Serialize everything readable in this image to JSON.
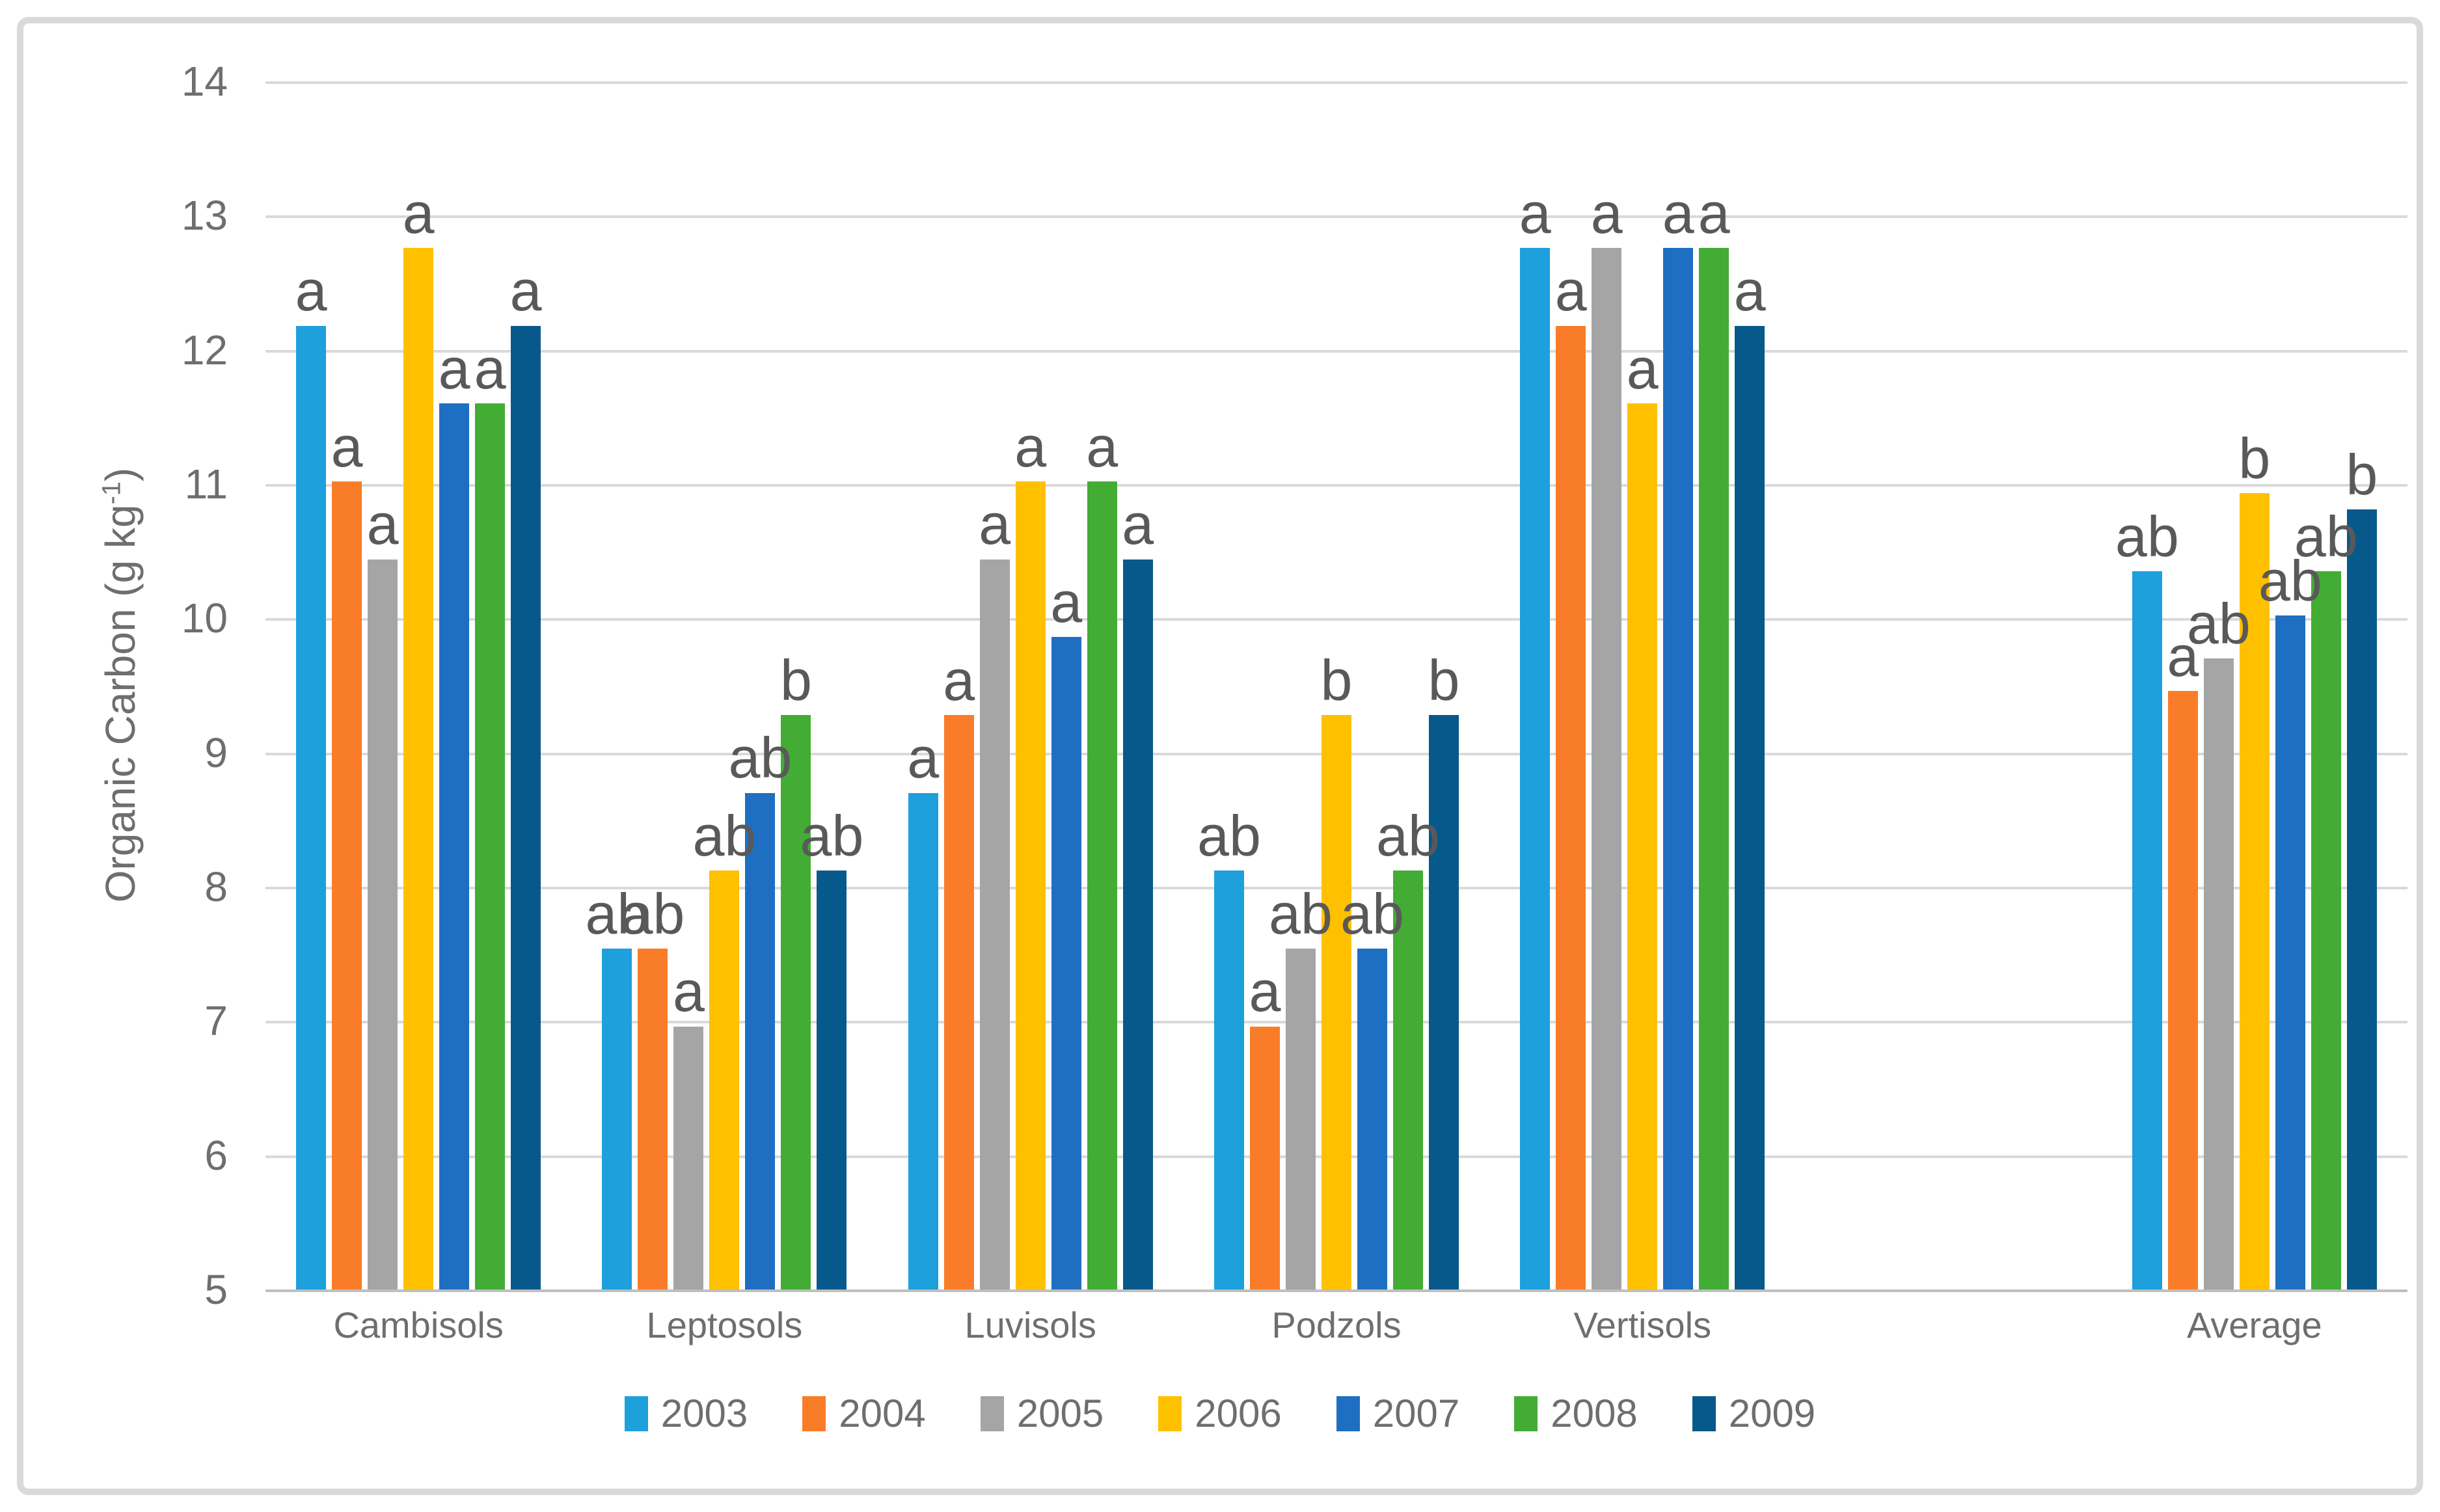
{
  "chart_data": {
    "type": "bar",
    "title": "",
    "ylabel": "Organic Carbon (g kg",
    "ylabel_sup": "-1",
    "ylabel_close": ")",
    "ylim": [
      5,
      14
    ],
    "ytick_step": 1,
    "yticks": [
      14,
      13,
      12,
      11,
      10,
      9,
      8,
      7,
      6,
      5
    ],
    "grid": true,
    "legend_position": "bottom",
    "categories": [
      "Cambisols",
      "Leptosols",
      "Luvisols",
      "Podzols",
      "Vertisols",
      "Average"
    ],
    "empty_slot_index": 5,
    "series": [
      {
        "name": "2003",
        "color": "#1EA0DC",
        "values": [
          12.18,
          7.54,
          8.7,
          8.12,
          12.76,
          10.35
        ],
        "letters": [
          "a",
          "ab",
          "a",
          "ab",
          "a",
          "ab"
        ]
      },
      {
        "name": "2004",
        "color": "#F97D28",
        "values": [
          11.02,
          7.54,
          9.28,
          6.96,
          12.18,
          9.46
        ],
        "letters": [
          "a",
          "ab",
          "a",
          "a",
          "a",
          "a"
        ]
      },
      {
        "name": "2005",
        "color": "#A5A5A5",
        "values": [
          10.44,
          6.96,
          10.44,
          7.54,
          12.76,
          9.7
        ],
        "letters": [
          "a",
          "a",
          "a",
          "ab",
          "a",
          "ab"
        ]
      },
      {
        "name": "2006",
        "color": "#FFC000",
        "values": [
          12.76,
          8.12,
          11.02,
          9.28,
          11.6,
          10.93
        ],
        "letters": [
          "a",
          "ab",
          "a",
          "b",
          "a",
          "b"
        ]
      },
      {
        "name": "2007",
        "color": "#1E6FC2",
        "values": [
          11.6,
          8.7,
          9.86,
          7.54,
          12.76,
          10.02
        ],
        "letters": [
          "a",
          "ab",
          "a",
          "ab",
          "a",
          "ab"
        ]
      },
      {
        "name": "2008",
        "color": "#43AC35",
        "values": [
          11.6,
          9.28,
          11.02,
          8.12,
          12.76,
          10.35
        ],
        "letters": [
          "a",
          "b",
          "a",
          "ab",
          "a",
          "ab"
        ]
      },
      {
        "name": "2009",
        "color": "#07598B",
        "values": [
          12.18,
          8.12,
          10.44,
          9.28,
          12.18,
          10.81
        ],
        "letters": [
          "a",
          "ab",
          "a",
          "b",
          "a",
          "b"
        ]
      }
    ]
  },
  "style": {
    "gridline_color": "#D9D9D9",
    "axis_line_color": "#BFBFBF",
    "text_color": "#6E6E6E",
    "letter_color": "#595959",
    "figure_border_color": "#D9D9D9",
    "background": "#FFFFFF"
  }
}
